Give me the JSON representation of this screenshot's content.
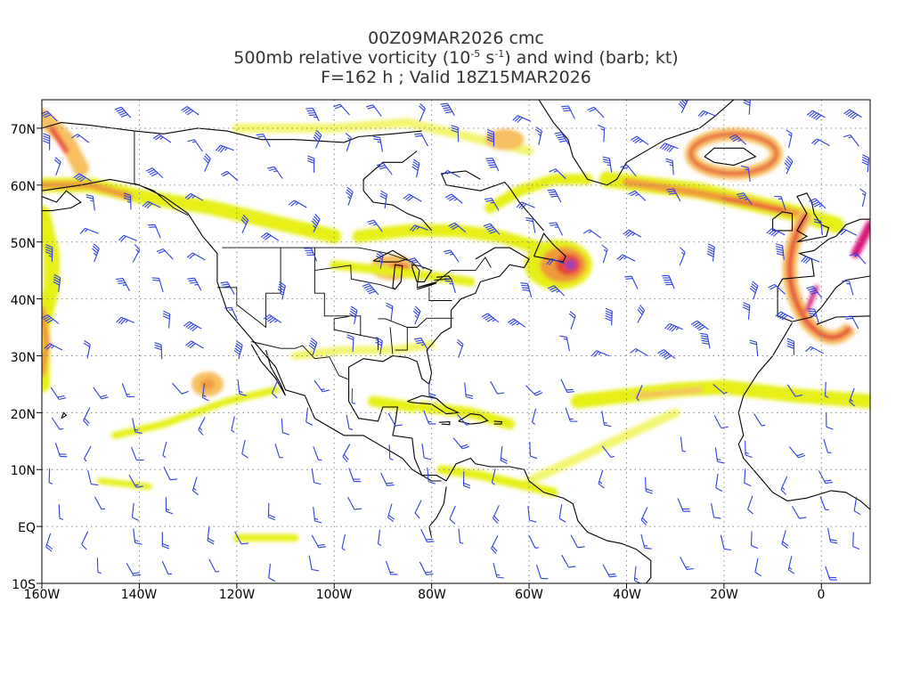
{
  "title": {
    "line1": "00Z09MAR2026 cmc",
    "line2_prefix": "500mb relative vorticity (10",
    "line2_exp1": "-5",
    "line2_mid": " s",
    "line2_exp2": "-1",
    "line2_suffix": ") and wind (barb; kt)",
    "line3": "F=162 h ; Valid 18Z15MAR2026"
  },
  "axes": {
    "lon_labels": [
      "160W",
      "140W",
      "120W",
      "100W",
      "80W",
      "60W",
      "40W",
      "20W",
      "0"
    ],
    "lat_labels": [
      "70N",
      "60N",
      "50N",
      "40N",
      "30N",
      "20N",
      "10N",
      "EQ",
      "10S"
    ],
    "lon_range": [
      -160,
      10
    ],
    "lat_range": [
      -10,
      75
    ],
    "grid": "dotted"
  },
  "colors": {
    "wind_barb": "#2e3fe0",
    "vort_light": "#f3f56d",
    "vort_yellow": "#e6ef17",
    "vort_orange_light": "#f7c060",
    "vort_orange": "#f09a3a",
    "vort_red": "#e8463a",
    "vort_magenta": "#d8157a",
    "vort_purple": "#9b3fb6",
    "coastline": "#000000"
  },
  "chart_data": {
    "type": "map",
    "field": "500mb relative vorticity with wind barbs",
    "vorticity_features": [
      {
        "region": "Newfoundland low",
        "lon": -52,
        "lat": 46,
        "intensity": "max"
      },
      {
        "region": "Iberia / NW Africa trough",
        "lon": 0,
        "lat": 38,
        "intensity": "high"
      },
      {
        "region": "North Atlantic jet band",
        "lon": -20,
        "lat": 62,
        "intensity": "high"
      },
      {
        "region": "Great Lakes",
        "lon": -87,
        "lat": 44,
        "intensity": "high"
      },
      {
        "region": "NE Pacific / Alaska",
        "lon": -155,
        "lat": 58,
        "intensity": "medium"
      },
      {
        "region": "Subtropical Atlantic band",
        "lon": -25,
        "lat": 23,
        "intensity": "low"
      },
      {
        "region": "East Pacific blob",
        "lon": -126,
        "lat": 25,
        "intensity": "medium"
      }
    ]
  }
}
